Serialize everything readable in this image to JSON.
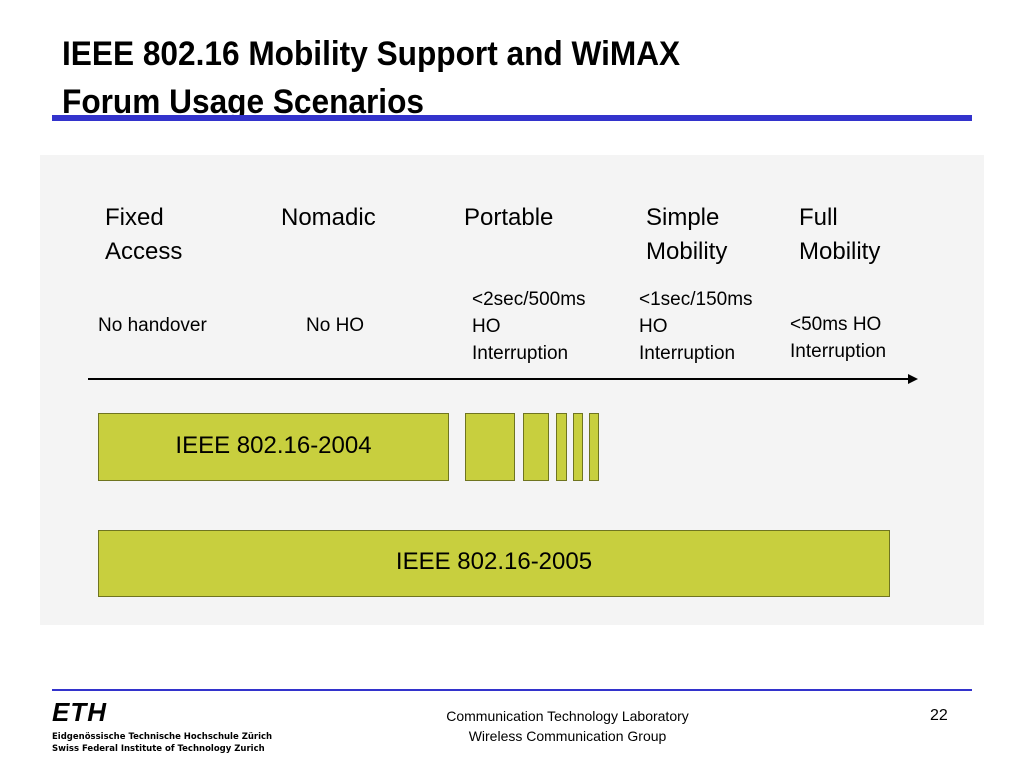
{
  "slide": {
    "title": "IEEE 802.16 Mobility Support and WiMAX\nForum Usage Scenarios",
    "categories": [
      {
        "label": "Fixed\nAccess"
      },
      {
        "label": "Nomadic"
      },
      {
        "label": "Portable"
      },
      {
        "label": "Simple\nMobility"
      },
      {
        "label": "Full\nMobility"
      }
    ],
    "handover": [
      {
        "label": "No  handover"
      },
      {
        "label": "No HO"
      },
      {
        "label": "<2sec/500ms\nHO\nInterruption"
      },
      {
        "label": "<1sec/150ms\nHO\nInterruption"
      },
      {
        "label": "<50ms HO\nInterruption"
      }
    ],
    "standards": {
      "std_2004": "IEEE 802.16-2004",
      "std_2005": "IEEE 802.16-2005"
    },
    "colors": {
      "bar_fill": "#c8cf3e",
      "rule_blue": "#3333cc"
    }
  },
  "footer": {
    "logo_mark": "ETH",
    "logo_line1": "Eidgenössische Technische Hochschule Zürich",
    "logo_line2": "Swiss Federal Institute of Technology Zurich",
    "lab": "Communication Technology Laboratory",
    "group": "Wireless Communication Group",
    "page_number": "22"
  }
}
